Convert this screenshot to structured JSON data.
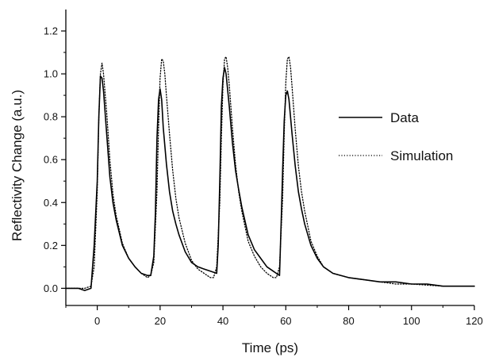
{
  "chart_data": {
    "type": "line",
    "title": "",
    "xlabel": "Time (ps)",
    "ylabel": "Reflectivity Change (a.u.)",
    "xlim": [
      -10,
      120
    ],
    "ylim": [
      -0.08,
      1.3
    ],
    "xticks": [
      0,
      20,
      40,
      60,
      80,
      100,
      120
    ],
    "xtick_labels": [
      "0",
      "20",
      "40",
      "60",
      "80",
      "100",
      "120"
    ],
    "yticks": [
      0.0,
      0.2,
      0.4,
      0.6,
      0.8,
      1.0,
      1.2
    ],
    "ytick_labels": [
      "0.0",
      "0.2",
      "0.4",
      "0.6",
      "0.8",
      "1.0",
      "1.2"
    ],
    "grid": false,
    "legend_position": "right",
    "series": [
      {
        "name": "Data",
        "style": "solid",
        "color": "#000000",
        "x": [
          -10,
          -6,
          -4,
          -2,
          -1,
          0,
          0.5,
          1,
          1.5,
          2,
          3,
          4,
          5,
          6,
          8,
          10,
          12,
          14,
          16,
          17,
          18,
          18.5,
          19,
          19.5,
          20,
          20.5,
          21,
          22,
          23,
          24,
          25,
          26,
          28,
          30,
          32,
          34,
          36,
          38,
          38.5,
          39,
          39.5,
          40,
          40.5,
          41,
          42,
          43,
          44,
          45,
          46,
          48,
          50,
          52,
          54,
          56,
          57,
          58,
          58.5,
          59,
          59.5,
          60,
          60.5,
          61,
          62,
          63,
          64,
          65,
          66,
          68,
          70,
          72,
          75,
          80,
          85,
          90,
          95,
          100,
          105,
          110,
          115,
          120
        ],
        "y": [
          0.0,
          0.0,
          -0.01,
          0.0,
          0.2,
          0.5,
          0.8,
          0.99,
          0.98,
          0.92,
          0.72,
          0.52,
          0.4,
          0.32,
          0.2,
          0.14,
          0.1,
          0.07,
          0.06,
          0.06,
          0.15,
          0.35,
          0.7,
          0.88,
          0.93,
          0.88,
          0.75,
          0.58,
          0.45,
          0.36,
          0.3,
          0.25,
          0.17,
          0.12,
          0.1,
          0.09,
          0.08,
          0.07,
          0.2,
          0.5,
          0.85,
          0.98,
          1.03,
          1.0,
          0.85,
          0.68,
          0.55,
          0.46,
          0.38,
          0.25,
          0.18,
          0.14,
          0.1,
          0.08,
          0.07,
          0.06,
          0.3,
          0.55,
          0.78,
          0.9,
          0.92,
          0.88,
          0.72,
          0.57,
          0.45,
          0.37,
          0.3,
          0.2,
          0.14,
          0.1,
          0.07,
          0.05,
          0.04,
          0.03,
          0.03,
          0.02,
          0.02,
          0.01,
          0.01,
          0.01
        ]
      },
      {
        "name": "Simulation",
        "style": "dotted",
        "color": "#000000",
        "x": [
          -10,
          -4,
          -2,
          -1,
          0,
          0.5,
          1,
          1.5,
          2,
          3,
          4,
          5,
          6,
          8,
          10,
          12,
          14,
          16,
          17,
          18,
          19,
          19.5,
          20,
          20.5,
          21,
          21.5,
          22,
          23,
          24,
          25,
          26,
          28,
          30,
          32,
          34,
          36,
          37,
          38,
          39,
          39.5,
          40,
          40.5,
          41,
          41.5,
          42,
          43,
          44,
          45,
          46,
          48,
          50,
          52,
          54,
          56,
          57,
          58,
          59,
          59.5,
          60,
          60.5,
          61,
          61.5,
          62,
          63,
          64,
          65,
          66,
          68,
          70,
          72,
          75,
          80,
          85,
          90,
          95,
          100,
          110,
          120
        ],
        "y": [
          0.0,
          0.0,
          0.01,
          0.1,
          0.45,
          0.8,
          1.0,
          1.05,
          1.0,
          0.82,
          0.6,
          0.44,
          0.34,
          0.21,
          0.14,
          0.1,
          0.07,
          0.05,
          0.06,
          0.12,
          0.45,
          0.75,
          0.98,
          1.07,
          1.06,
          1.0,
          0.9,
          0.72,
          0.55,
          0.42,
          0.33,
          0.21,
          0.13,
          0.09,
          0.07,
          0.05,
          0.05,
          0.1,
          0.4,
          0.7,
          0.95,
          1.07,
          1.08,
          1.03,
          0.95,
          0.75,
          0.58,
          0.45,
          0.36,
          0.22,
          0.15,
          0.1,
          0.07,
          0.05,
          0.05,
          0.1,
          0.42,
          0.72,
          0.96,
          1.07,
          1.08,
          1.03,
          0.94,
          0.74,
          0.57,
          0.45,
          0.36,
          0.22,
          0.15,
          0.1,
          0.07,
          0.05,
          0.04,
          0.03,
          0.02,
          0.02,
          0.01,
          0.01
        ]
      }
    ]
  }
}
